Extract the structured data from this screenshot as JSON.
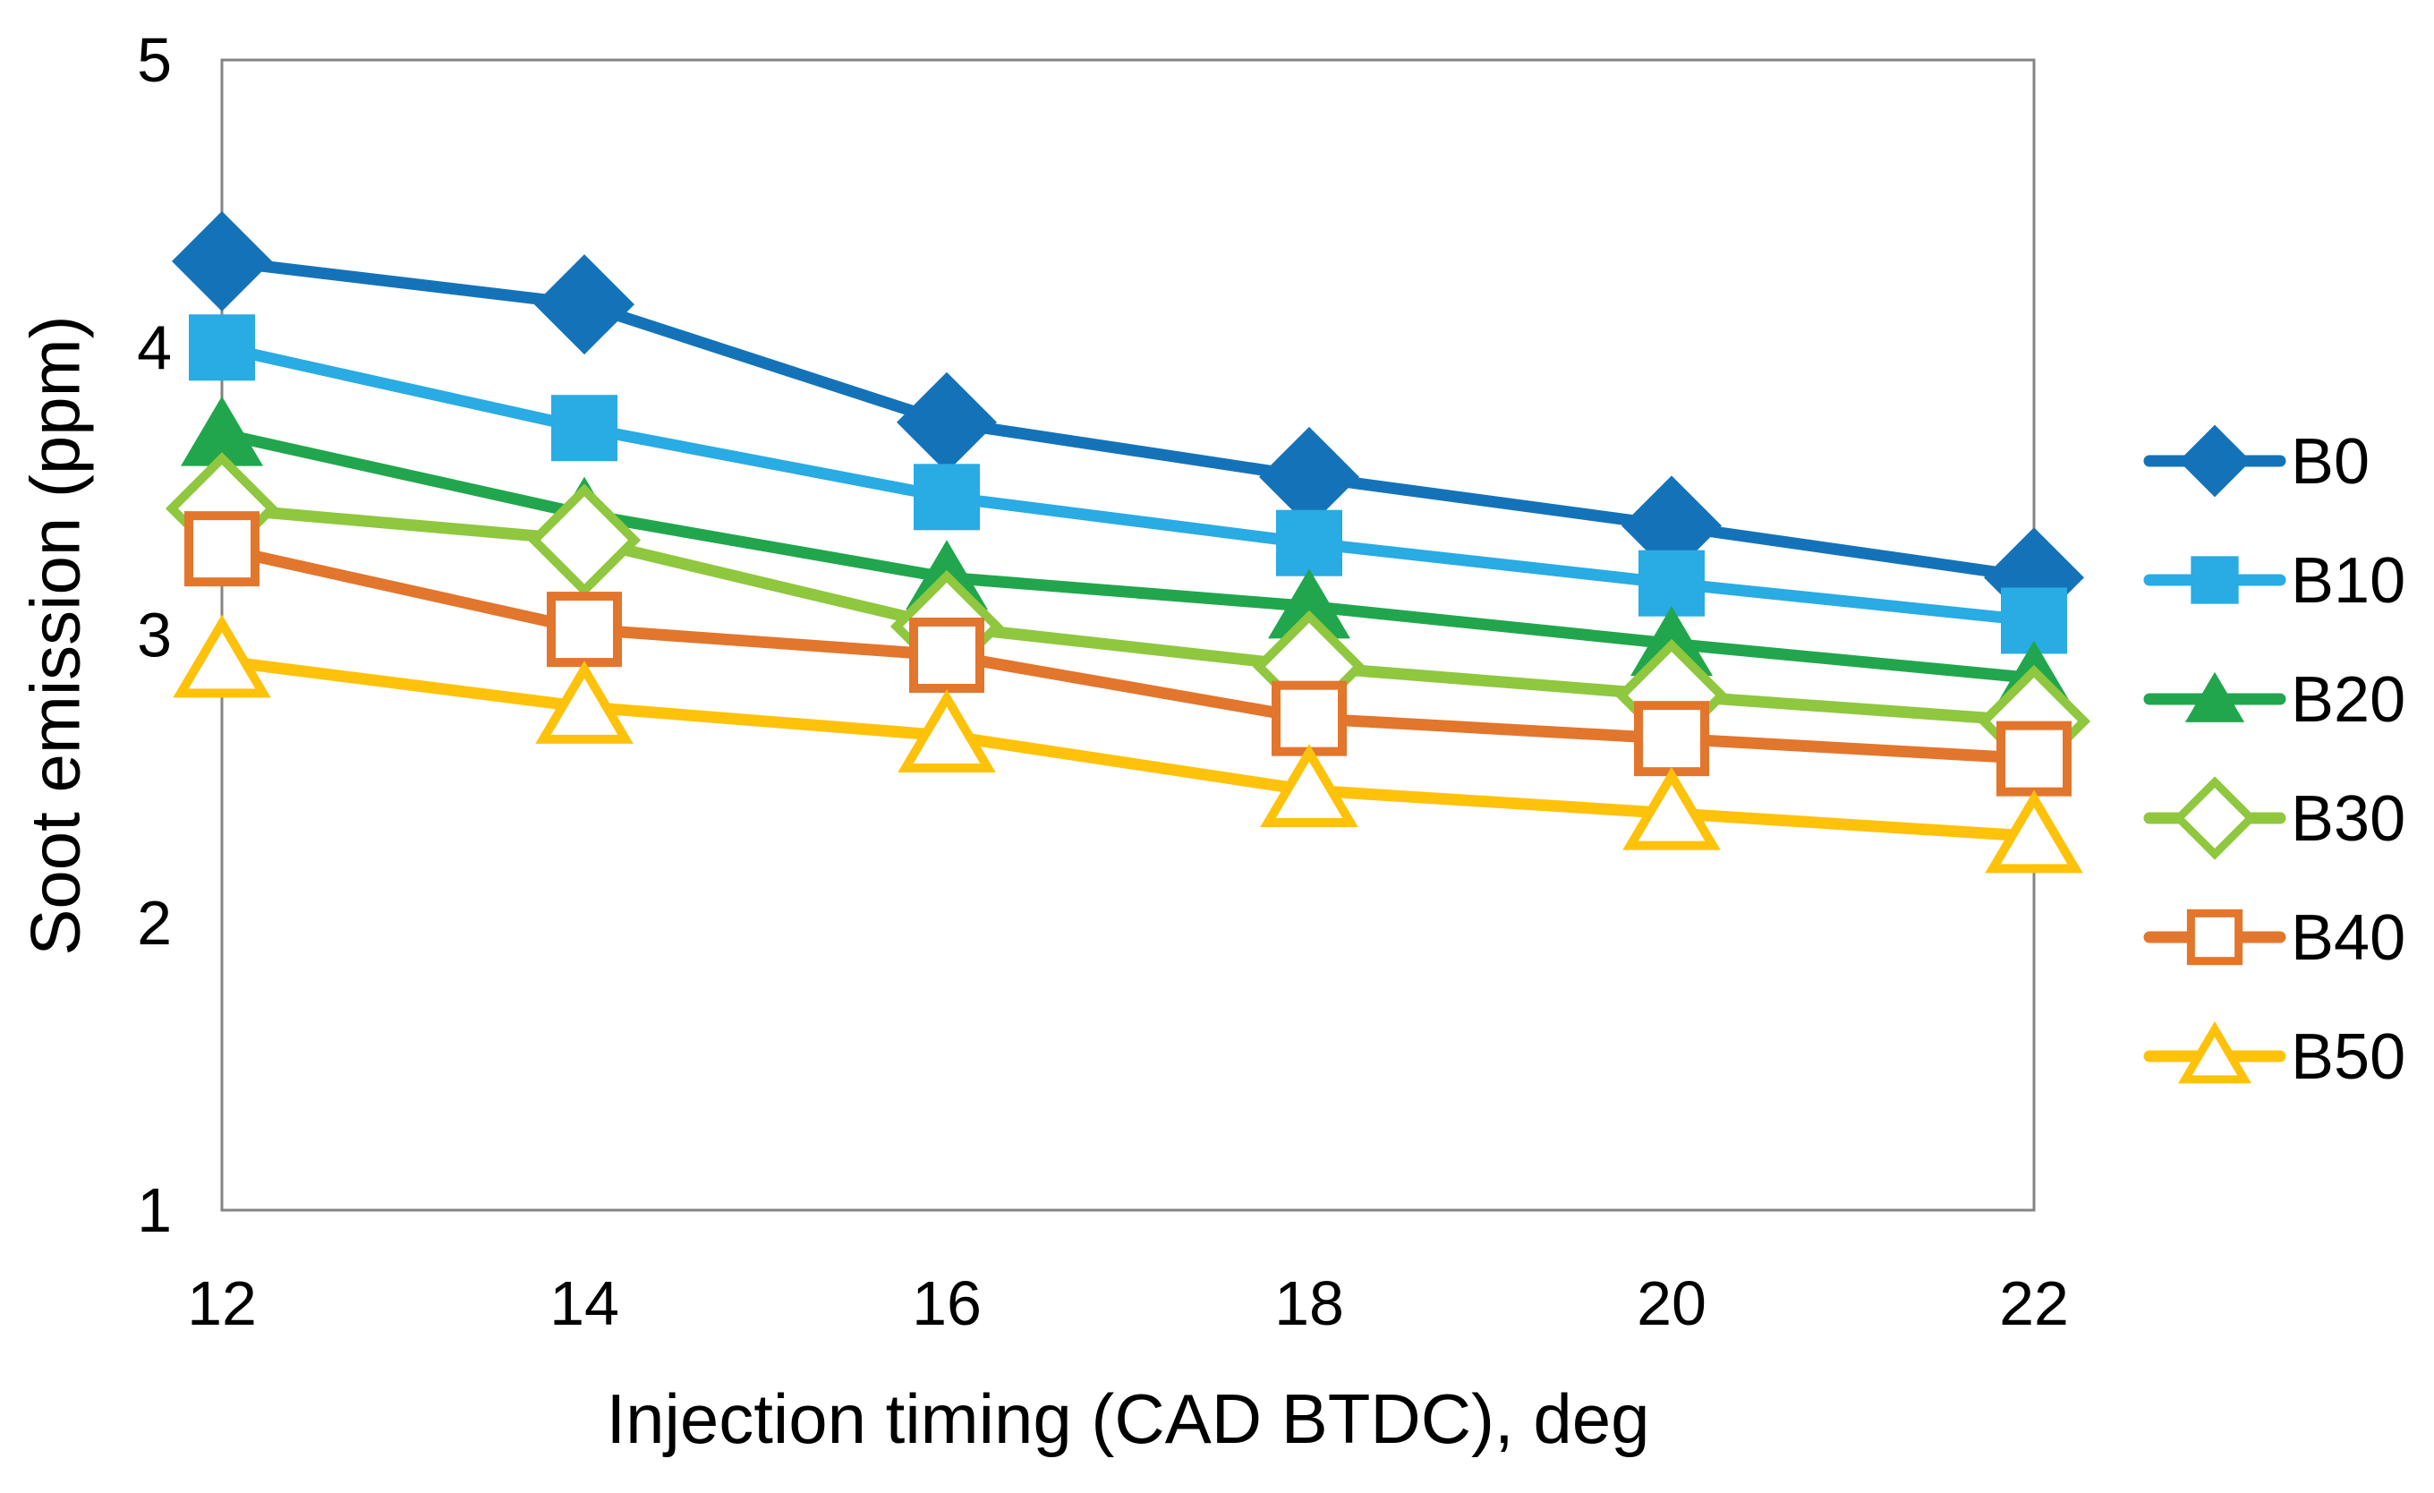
{
  "chart_data": {
    "type": "line",
    "title": "",
    "xlabel": "Injection timing (CAD BTDC), deg",
    "ylabel": "Soot emission (ppm)",
    "x": [
      12,
      14,
      16,
      18,
      20,
      22
    ],
    "xlim": [
      12,
      22
    ],
    "ylim": [
      1,
      5
    ],
    "grid": false,
    "legend_position": "right",
    "x_tick_labels": [
      "12",
      "14",
      "16",
      "18",
      "20",
      "22"
    ],
    "y_tick_labels": [
      "5",
      "4",
      "3",
      "2",
      "1"
    ],
    "y_tick_values": [
      5,
      4,
      3,
      2,
      1
    ],
    "series": [
      {
        "name": "B0",
        "color": "#1473B8",
        "marker": "diamond",
        "fill": "solid",
        "values": [
          4.3,
          4.15,
          3.74,
          3.55,
          3.38,
          3.2
        ]
      },
      {
        "name": "B10",
        "color": "#29ABE3",
        "marker": "square",
        "fill": "solid",
        "values": [
          4.0,
          3.72,
          3.48,
          3.32,
          3.18,
          3.05
        ]
      },
      {
        "name": "B20",
        "color": "#21A64D",
        "marker": "triangle",
        "fill": "solid",
        "values": [
          3.7,
          3.42,
          3.2,
          3.1,
          2.97,
          2.85
        ]
      },
      {
        "name": "B30",
        "color": "#8FC73E",
        "marker": "diamond",
        "fill": "open",
        "values": [
          3.44,
          3.33,
          3.03,
          2.89,
          2.79,
          2.7
        ]
      },
      {
        "name": "B40",
        "color": "#E2762D",
        "marker": "square",
        "fill": "open",
        "values": [
          3.3,
          3.02,
          2.93,
          2.71,
          2.64,
          2.57
        ]
      },
      {
        "name": "B50",
        "color": "#FFC20A",
        "marker": "triangle",
        "fill": "open",
        "values": [
          2.91,
          2.75,
          2.65,
          2.46,
          2.38,
          2.3
        ]
      }
    ]
  },
  "colors": {
    "plot_border": "#858585",
    "background": "#ffffff",
    "text": "#000000"
  }
}
